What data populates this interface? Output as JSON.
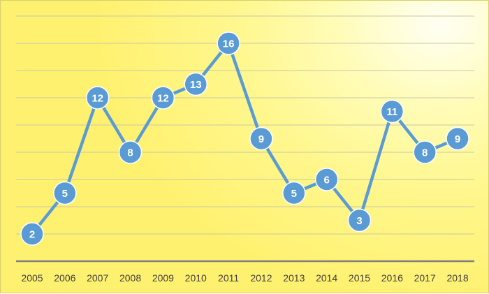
{
  "colors": {
    "series": "#5b9bd5",
    "marker_stroke": "#ffffff"
  },
  "chart_data": {
    "type": "line",
    "title": "",
    "xlabel": "",
    "ylabel": "",
    "x": [
      "2005",
      "2006",
      "2007",
      "2008",
      "2009",
      "2010",
      "2011",
      "2012",
      "2013",
      "2014",
      "2015",
      "2016",
      "2017",
      "2018"
    ],
    "series": [
      {
        "values": [
          2,
          5,
          12,
          8,
          12,
          13,
          16,
          9,
          5,
          6,
          3,
          11,
          8,
          9
        ]
      }
    ],
    "ylim": [
      0,
      18
    ],
    "y_gridline_step": 2,
    "grid": true,
    "legend": "none",
    "data_labels": true,
    "markers": "circle"
  }
}
